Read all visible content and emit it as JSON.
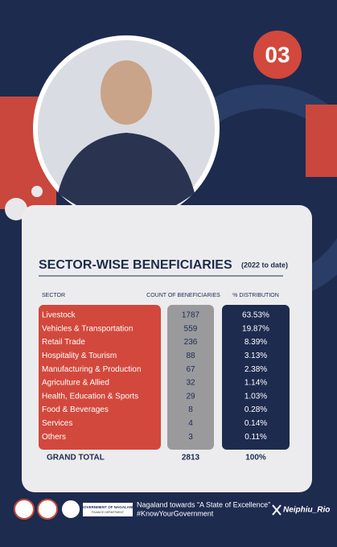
{
  "badge": "03",
  "title": "SECTOR-WISE BENEFICIARIES",
  "subtitle": "(2022 to date)",
  "table": {
    "headers": [
      "SECTOR",
      "COUNT OF BENEFICIARIES",
      "% DISTRIBUTION"
    ],
    "rows": [
      [
        "Livestock",
        1787,
        "63.53%"
      ],
      [
        "Vehicles & Transportation",
        559,
        "19.87%"
      ],
      [
        "Retail Trade",
        236,
        "8.39%"
      ],
      [
        "Hospitality & Tourism",
        88,
        "3.13%"
      ],
      [
        "Manufacturing & Production",
        67,
        "2.38%"
      ],
      [
        "Agriculture & Allied",
        32,
        "1.14%"
      ],
      [
        "Health, Education & Sports",
        29,
        "1.03%"
      ],
      [
        "Food & Beverages",
        8,
        "0.28%"
      ],
      [
        "Services",
        4,
        "0.14%"
      ],
      [
        "Others",
        3,
        "0.11%"
      ]
    ],
    "total": [
      "GRAND TOTAL",
      2813,
      "100%"
    ]
  },
  "footer": {
    "logo_text": [
      "GOVERNMENT OF NAGALAND",
      "FINANCE DEPARTMENT"
    ],
    "tagline": "Nagaland towards “A State of Excellence”",
    "hashtag": "#KnowYourGovernment",
    "handle": "Neiphiu_Rio"
  }
}
